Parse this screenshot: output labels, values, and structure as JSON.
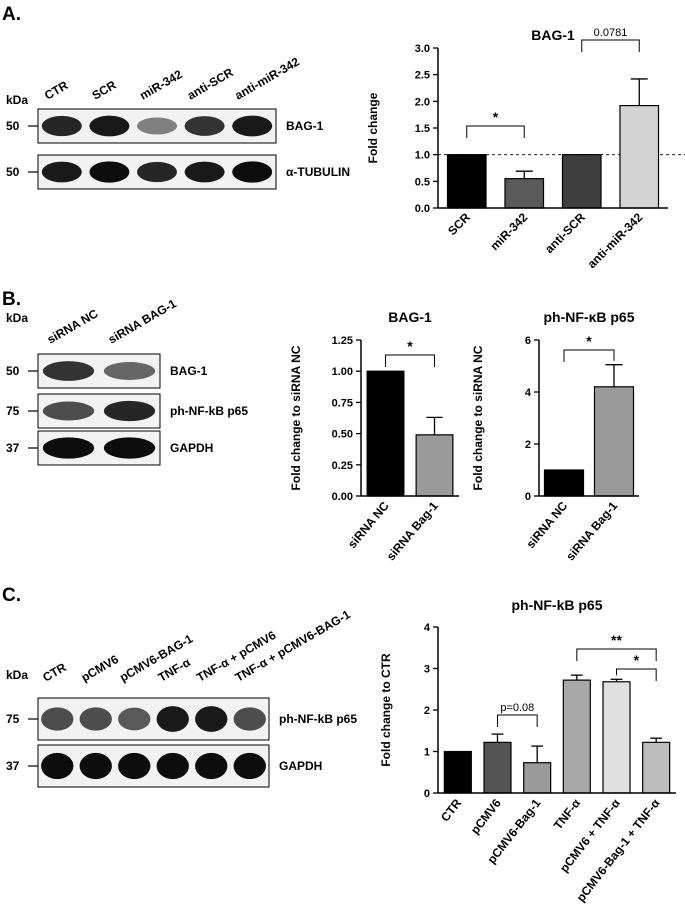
{
  "panels": {
    "A": {
      "letter": "A.",
      "blot": {
        "kda_label": "kDa",
        "lanes": [
          "CTR",
          "SCR",
          "miR-342",
          "anti-SCR",
          "anti-miR-342"
        ],
        "rows": [
          {
            "marker": "50",
            "label": "BAG-1",
            "intensity": [
              0.85,
              0.9,
              0.5,
              0.8,
              0.9
            ]
          },
          {
            "marker": "50",
            "label": "α-TUBULIN",
            "intensity": [
              0.9,
              0.95,
              0.85,
              0.9,
              0.95
            ]
          }
        ]
      }
    },
    "B": {
      "letter": "B.",
      "blot": {
        "kda_label": "kDa",
        "lanes": [
          "siRNA NC",
          "siRNA BAG-1"
        ],
        "rows": [
          {
            "marker": "50",
            "label": "BAG-1",
            "intensity": [
              0.8,
              0.6
            ]
          },
          {
            "marker": "75",
            "label": "ph-NF-kB p65",
            "intensity": [
              0.7,
              0.85
            ]
          },
          {
            "marker": "37",
            "label": "GAPDH",
            "intensity": [
              0.95,
              0.95
            ]
          }
        ]
      }
    },
    "C": {
      "letter": "C.",
      "blot": {
        "kda_label": "kDa",
        "lanes": [
          "CTR",
          "pCMV6",
          "pCMV6-BAG-1",
          "TNF-α",
          "TNF-α + pCMV6",
          "TNF-α + pCMV6-BAG-1"
        ],
        "rows": [
          {
            "marker": "75",
            "label": "ph-NF-kB p65",
            "intensity": [
              0.7,
              0.7,
              0.65,
              0.9,
              0.9,
              0.7
            ]
          },
          {
            "marker": "37",
            "label": "GAPDH",
            "intensity": [
              0.95,
              0.95,
              0.95,
              0.95,
              0.95,
              0.95
            ]
          }
        ]
      }
    }
  },
  "chart_data": [
    {
      "id": "A",
      "type": "bar",
      "title": "BAG-1",
      "ylabel": "Fold change",
      "categories": [
        "SCR",
        "miR-342",
        "anti-SCR",
        "anti-miR-342"
      ],
      "values": [
        1.0,
        0.55,
        1.0,
        1.92
      ],
      "errors": [
        0,
        0.14,
        0,
        0.5
      ],
      "colors": [
        "#000000",
        "#5a5a5a",
        "#3e3e3e",
        "#d3d3d3"
      ],
      "ylim": [
        0,
        3.0
      ],
      "yticks": [
        "0.0",
        "0.5",
        "1.0",
        "1.5",
        "2.0",
        "2.5",
        "3.0"
      ],
      "reference_line": 1.0,
      "annotations": [
        {
          "from": 0,
          "to": 1,
          "text": "*"
        },
        {
          "from": 2,
          "to": 3,
          "text": "0.0781"
        }
      ]
    },
    {
      "id": "B1",
      "type": "bar",
      "title": "BAG-1",
      "ylabel": "Fold change to siRNA NC",
      "categories": [
        "siRNA NC",
        "siRNA Bag-1"
      ],
      "values": [
        1.0,
        0.49
      ],
      "errors": [
        0,
        0.14
      ],
      "colors": [
        "#000000",
        "#9a9a9a"
      ],
      "ylim": [
        0,
        1.25
      ],
      "yticks": [
        "0.00",
        "0.25",
        "0.50",
        "0.75",
        "1.00",
        "1.25"
      ],
      "annotations": [
        {
          "from": 0,
          "to": 1,
          "text": "*"
        }
      ]
    },
    {
      "id": "B2",
      "type": "bar",
      "title": "ph-NF-κB p65",
      "ylabel": "Fold change to siRNA NC",
      "categories": [
        "siRNA NC",
        "siRNA Bag-1"
      ],
      "values": [
        1.0,
        4.2
      ],
      "errors": [
        0,
        0.85
      ],
      "colors": [
        "#000000",
        "#9a9a9a"
      ],
      "ylim": [
        0,
        6
      ],
      "yticks": [
        "0",
        "2",
        "4",
        "6"
      ],
      "annotations": [
        {
          "from": 0,
          "to": 1,
          "text": "*"
        }
      ]
    },
    {
      "id": "C",
      "type": "bar",
      "title": "ph-NF-kB p65",
      "ylabel": "Fold change to CTR",
      "categories": [
        "CTR",
        "pCMV6",
        "pCMV6-Bag-1",
        "TNF-α",
        "pCMV6 + TNF-α",
        "pCMV6-Bag-1 + TNF-α"
      ],
      "values": [
        1.0,
        1.22,
        0.73,
        2.72,
        2.68,
        1.22
      ],
      "errors": [
        0,
        0.2,
        0.4,
        0.12,
        0.06,
        0.1
      ],
      "colors": [
        "#000000",
        "#555555",
        "#9a9a9a",
        "#a8a8a8",
        "#e0e0e0",
        "#bdbdbd"
      ],
      "ylim": [
        0,
        4
      ],
      "yticks": [
        "0",
        "1",
        "2",
        "3",
        "4"
      ],
      "annotations": [
        {
          "from": 1,
          "to": 2,
          "text": "p=0.08"
        },
        {
          "from": 4,
          "to": 5,
          "text": "*"
        },
        {
          "from": 3,
          "to": 5,
          "text": "**"
        }
      ]
    }
  ]
}
